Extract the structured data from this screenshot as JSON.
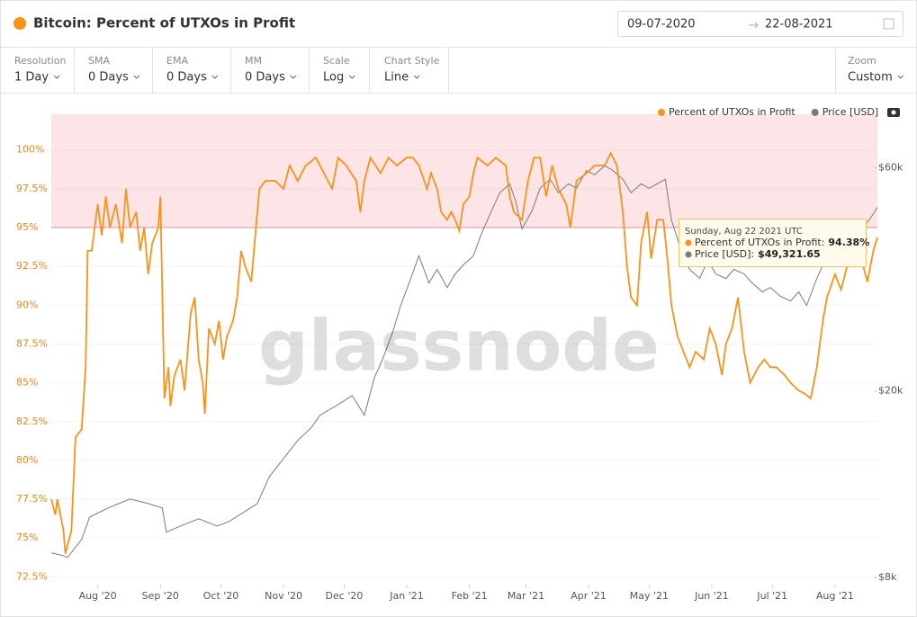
{
  "header": {
    "title": "Bitcoin: Percent of UTXOs in Profit",
    "date_from": "09-07-2020",
    "date_to": "22-08-2021"
  },
  "toolbar": [
    {
      "label": "Resolution",
      "value": "1 Day"
    },
    {
      "label": "SMA",
      "value": "0 Days"
    },
    {
      "label": "EMA",
      "value": "0 Days"
    },
    {
      "label": "MM",
      "value": "0 Days"
    },
    {
      "label": "Scale",
      "value": "Log"
    },
    {
      "label": "Chart Style",
      "value": "Line"
    },
    {
      "label": "Zoom",
      "value": "Custom"
    }
  ],
  "watermark": "glassnode",
  "chart_data": {
    "type": "line",
    "legend": "top-right",
    "grid": true,
    "series": [
      {
        "name": "Percent of UTXOs in Profit",
        "color": "#f7931a",
        "x": [
          0,
          2,
          3,
          6,
          7,
          10,
          12,
          15,
          17,
          18,
          20,
          23,
          25,
          27,
          29,
          32,
          35,
          37,
          39,
          42,
          44,
          46,
          48,
          50,
          53,
          54,
          56,
          58,
          59,
          61,
          64,
          66,
          69,
          71,
          73,
          75,
          76,
          78,
          81,
          83,
          85,
          87,
          90,
          92,
          94,
          96,
          99,
          101,
          103,
          106,
          111,
          115,
          118,
          122,
          126,
          131,
          135,
          139,
          142,
          146,
          151,
          153,
          155,
          158,
          163,
          167,
          171,
          176,
          179,
          182,
          186,
          188,
          191,
          193,
          196,
          198,
          200,
          202,
          204,
          207,
          209,
          211,
          216,
          220,
          225,
          227,
          229,
          233,
          236,
          239,
          242,
          245,
          248,
          251,
          255,
          257,
          260,
          265,
          269,
          274,
          277,
          280,
          283,
          285,
          287,
          290,
          292,
          295,
          297,
          300,
          303,
          305,
          307,
          310,
          313,
          316,
          319,
          323,
          326,
          329,
          332,
          334,
          337,
          340,
          343,
          346,
          350,
          353,
          356,
          359,
          363,
          366,
          370,
          373,
          376,
          379,
          382,
          384,
          388,
          391,
          394,
          398,
          401,
          404,
          407,
          409
        ],
        "values": [
          77.5,
          76.5,
          77.5,
          75.5,
          74,
          75.5,
          81.5,
          82,
          86,
          93.5,
          93.5,
          96.5,
          94.5,
          97,
          95,
          96.5,
          94,
          97.5,
          95,
          96,
          93.5,
          95,
          92,
          94,
          95,
          97,
          84,
          86,
          83.5,
          85.5,
          86.5,
          84.5,
          89.5,
          90.5,
          86.5,
          85,
          83,
          88.5,
          87.5,
          89,
          86.5,
          88,
          89,
          90.5,
          93.5,
          92.5,
          91.5,
          94.5,
          97.5,
          98,
          98,
          97.5,
          99,
          98,
          99,
          99.5,
          98.5,
          97.5,
          99.5,
          99,
          98,
          96,
          98,
          99.5,
          98.5,
          99.5,
          99,
          99.5,
          99.5,
          99,
          97.5,
          98.5,
          97.5,
          96,
          95.5,
          96,
          95.5,
          94.8,
          96.5,
          97,
          98.5,
          99.5,
          99,
          99.5,
          99,
          97,
          96,
          95.5,
          98,
          99.5,
          99.5,
          97,
          99,
          97.5,
          96.5,
          95,
          98,
          98.5,
          99,
          99,
          99.8,
          99,
          96,
          92.5,
          90.5,
          90,
          94,
          96,
          93,
          95.5,
          95.5,
          93,
          90,
          88,
          87,
          86,
          87,
          86.5,
          88.5,
          87.5,
          85.5,
          87.5,
          88.5,
          90.5,
          87,
          85,
          86,
          86.5,
          86,
          86,
          85.5,
          85,
          84.5,
          84.3,
          84,
          86,
          89,
          90.5,
          92,
          91,
          92.5,
          92.5,
          93,
          91.5,
          93.5,
          94.38
        ]
      },
      {
        "name": "Price [USD]",
        "color": "#7a7a7a",
        "axis": "y2",
        "x": [
          0,
          6,
          8,
          15,
          19,
          28,
          39,
          48,
          55,
          57,
          64,
          73,
          82,
          88,
          95,
          102,
          108,
          115,
          122,
          129,
          133,
          142,
          149,
          155,
          160,
          164,
          169,
          173,
          178,
          182,
          187,
          191,
          196,
          200,
          204,
          209,
          213,
          218,
          222,
          227,
          230,
          233,
          238,
          242,
          247,
          251,
          256,
          260,
          265,
          269,
          274,
          278,
          283,
          287,
          292,
          296,
          304,
          307,
          312,
          316,
          321,
          325,
          329,
          334,
          338,
          343,
          347,
          352,
          356,
          361,
          366,
          370,
          374,
          379,
          383,
          388,
          392,
          396,
          401,
          405,
          409
        ],
        "values": [
          9020,
          8900,
          8820,
          9640,
          10760,
          11250,
          11760,
          11500,
          11250,
          9990,
          10300,
          10670,
          10300,
          10530,
          11000,
          11500,
          13130,
          14350,
          15680,
          16750,
          17750,
          18710,
          19560,
          17750,
          21380,
          23350,
          26690,
          30470,
          34790,
          38880,
          34030,
          36380,
          33270,
          35570,
          37180,
          38880,
          43440,
          48540,
          53000,
          55400,
          50700,
          44400,
          48540,
          54200,
          56640,
          53000,
          55400,
          54200,
          59170,
          57900,
          60540,
          59170,
          56640,
          53000,
          55400,
          54200,
          56640,
          46400,
          39730,
          36380,
          34790,
          38020,
          35570,
          34790,
          36380,
          35570,
          34030,
          32560,
          33270,
          31860,
          31150,
          32560,
          30470,
          34790,
          38020,
          39730,
          40630,
          42480,
          44400,
          46400,
          49321.65
        ]
      }
    ],
    "xlim": [
      0,
      409
    ],
    "xticks": [
      {
        "value": 23,
        "label": "Aug '20"
      },
      {
        "value": 54,
        "label": "Sep '20"
      },
      {
        "value": 84,
        "label": "Oct '20"
      },
      {
        "value": 115,
        "label": "Nov '20"
      },
      {
        "value": 145,
        "label": "Dec '20"
      },
      {
        "value": 176,
        "label": "Jan '21"
      },
      {
        "value": 207,
        "label": "Feb '21"
      },
      {
        "value": 235,
        "label": "Mar '21"
      },
      {
        "value": 266,
        "label": "Apr '21"
      },
      {
        "value": 296,
        "label": "May '21"
      },
      {
        "value": 327,
        "label": "Jun '21"
      },
      {
        "value": 357,
        "label": "Jul '21"
      },
      {
        "value": 388,
        "label": "Aug '21"
      }
    ],
    "ylim": [
      72.0,
      102.3
    ],
    "yticks": [
      {
        "value": 72.5,
        "label": "72.5%"
      },
      {
        "value": 75,
        "label": "75%"
      },
      {
        "value": 77.5,
        "label": "77.5%"
      },
      {
        "value": 80,
        "label": "80%"
      },
      {
        "value": 82.5,
        "label": "82.5%"
      },
      {
        "value": 85,
        "label": "85%"
      },
      {
        "value": 87.5,
        "label": "87.5%"
      },
      {
        "value": 90,
        "label": "90%"
      },
      {
        "value": 92.5,
        "label": "92.5%"
      },
      {
        "value": 95,
        "label": "95%"
      },
      {
        "value": 97.5,
        "label": "97.5%"
      },
      {
        "value": 100,
        "label": "100%"
      }
    ],
    "y2scale": "log",
    "y2lim": [
      7720,
      78000
    ],
    "y2ticks": [
      {
        "value": 8000,
        "label": "$8k"
      },
      {
        "value": 20000,
        "label": "$20k"
      },
      {
        "value": 60000,
        "label": "$60k"
      }
    ],
    "threshold": {
      "value": 95,
      "color": "#fde4e6",
      "line_color": "#e89aa2"
    },
    "tooltip": {
      "title": "Sunday, Aug 22 2021 UTC",
      "items": [
        {
          "name": "Percent of UTXOs in Profit:",
          "value": "94.38%"
        },
        {
          "name": "Price [USD]:",
          "value": "$49,321.65"
        }
      ]
    }
  }
}
